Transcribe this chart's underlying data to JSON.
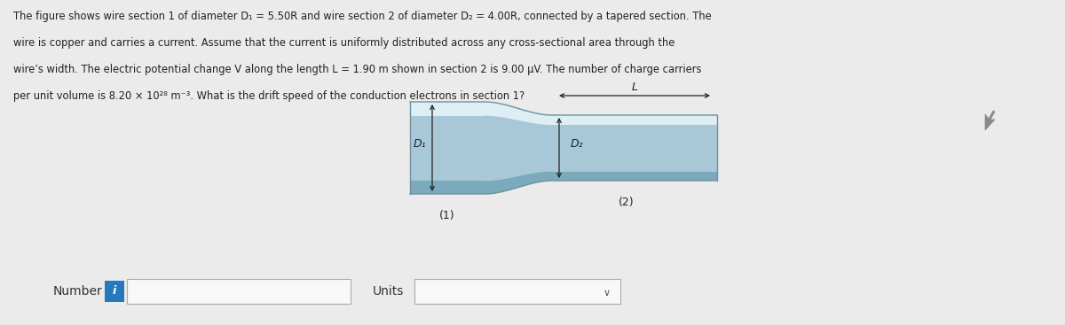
{
  "bg_color": "#ebebeb",
  "text_color": "#222222",
  "fig_width": 12.0,
  "fig_height": 3.67,
  "wire_color_base": "#a8c8d8",
  "wire_color_light": "#c8dfe8",
  "wire_color_highlight": "#ddeef5",
  "wire_color_dark": "#7aaabb",
  "wire_color_edge": "#7090a0",
  "wire_color_mid": "#b8d4e0",
  "info_btn_color": "#2878be",
  "number_label": "Number",
  "units_label": "Units",
  "D1_label": "D₁",
  "D2_label": "D₂",
  "L_label": "L",
  "sec1_label": "(1)",
  "sec2_label": "(2)",
  "line1": "The figure shows wire section 1 of diameter D₁ = 5.50R and wire section 2 of diameter D₂ = 4.00R, connected by a tapered section. The",
  "line2": "wire is copper and carries a current. Assume that the current is uniformly distributed across any cross-sectional area through the",
  "line3": "wire’s width. The electric potential change V along the length L = 1.90 m shown in section 2 is 9.00 μV. The number of charge carriers",
  "line4": "per unit volume is 8.20 × 10²⁸ m⁻³. What is the drift speed of the conduction electrons in section 1?"
}
